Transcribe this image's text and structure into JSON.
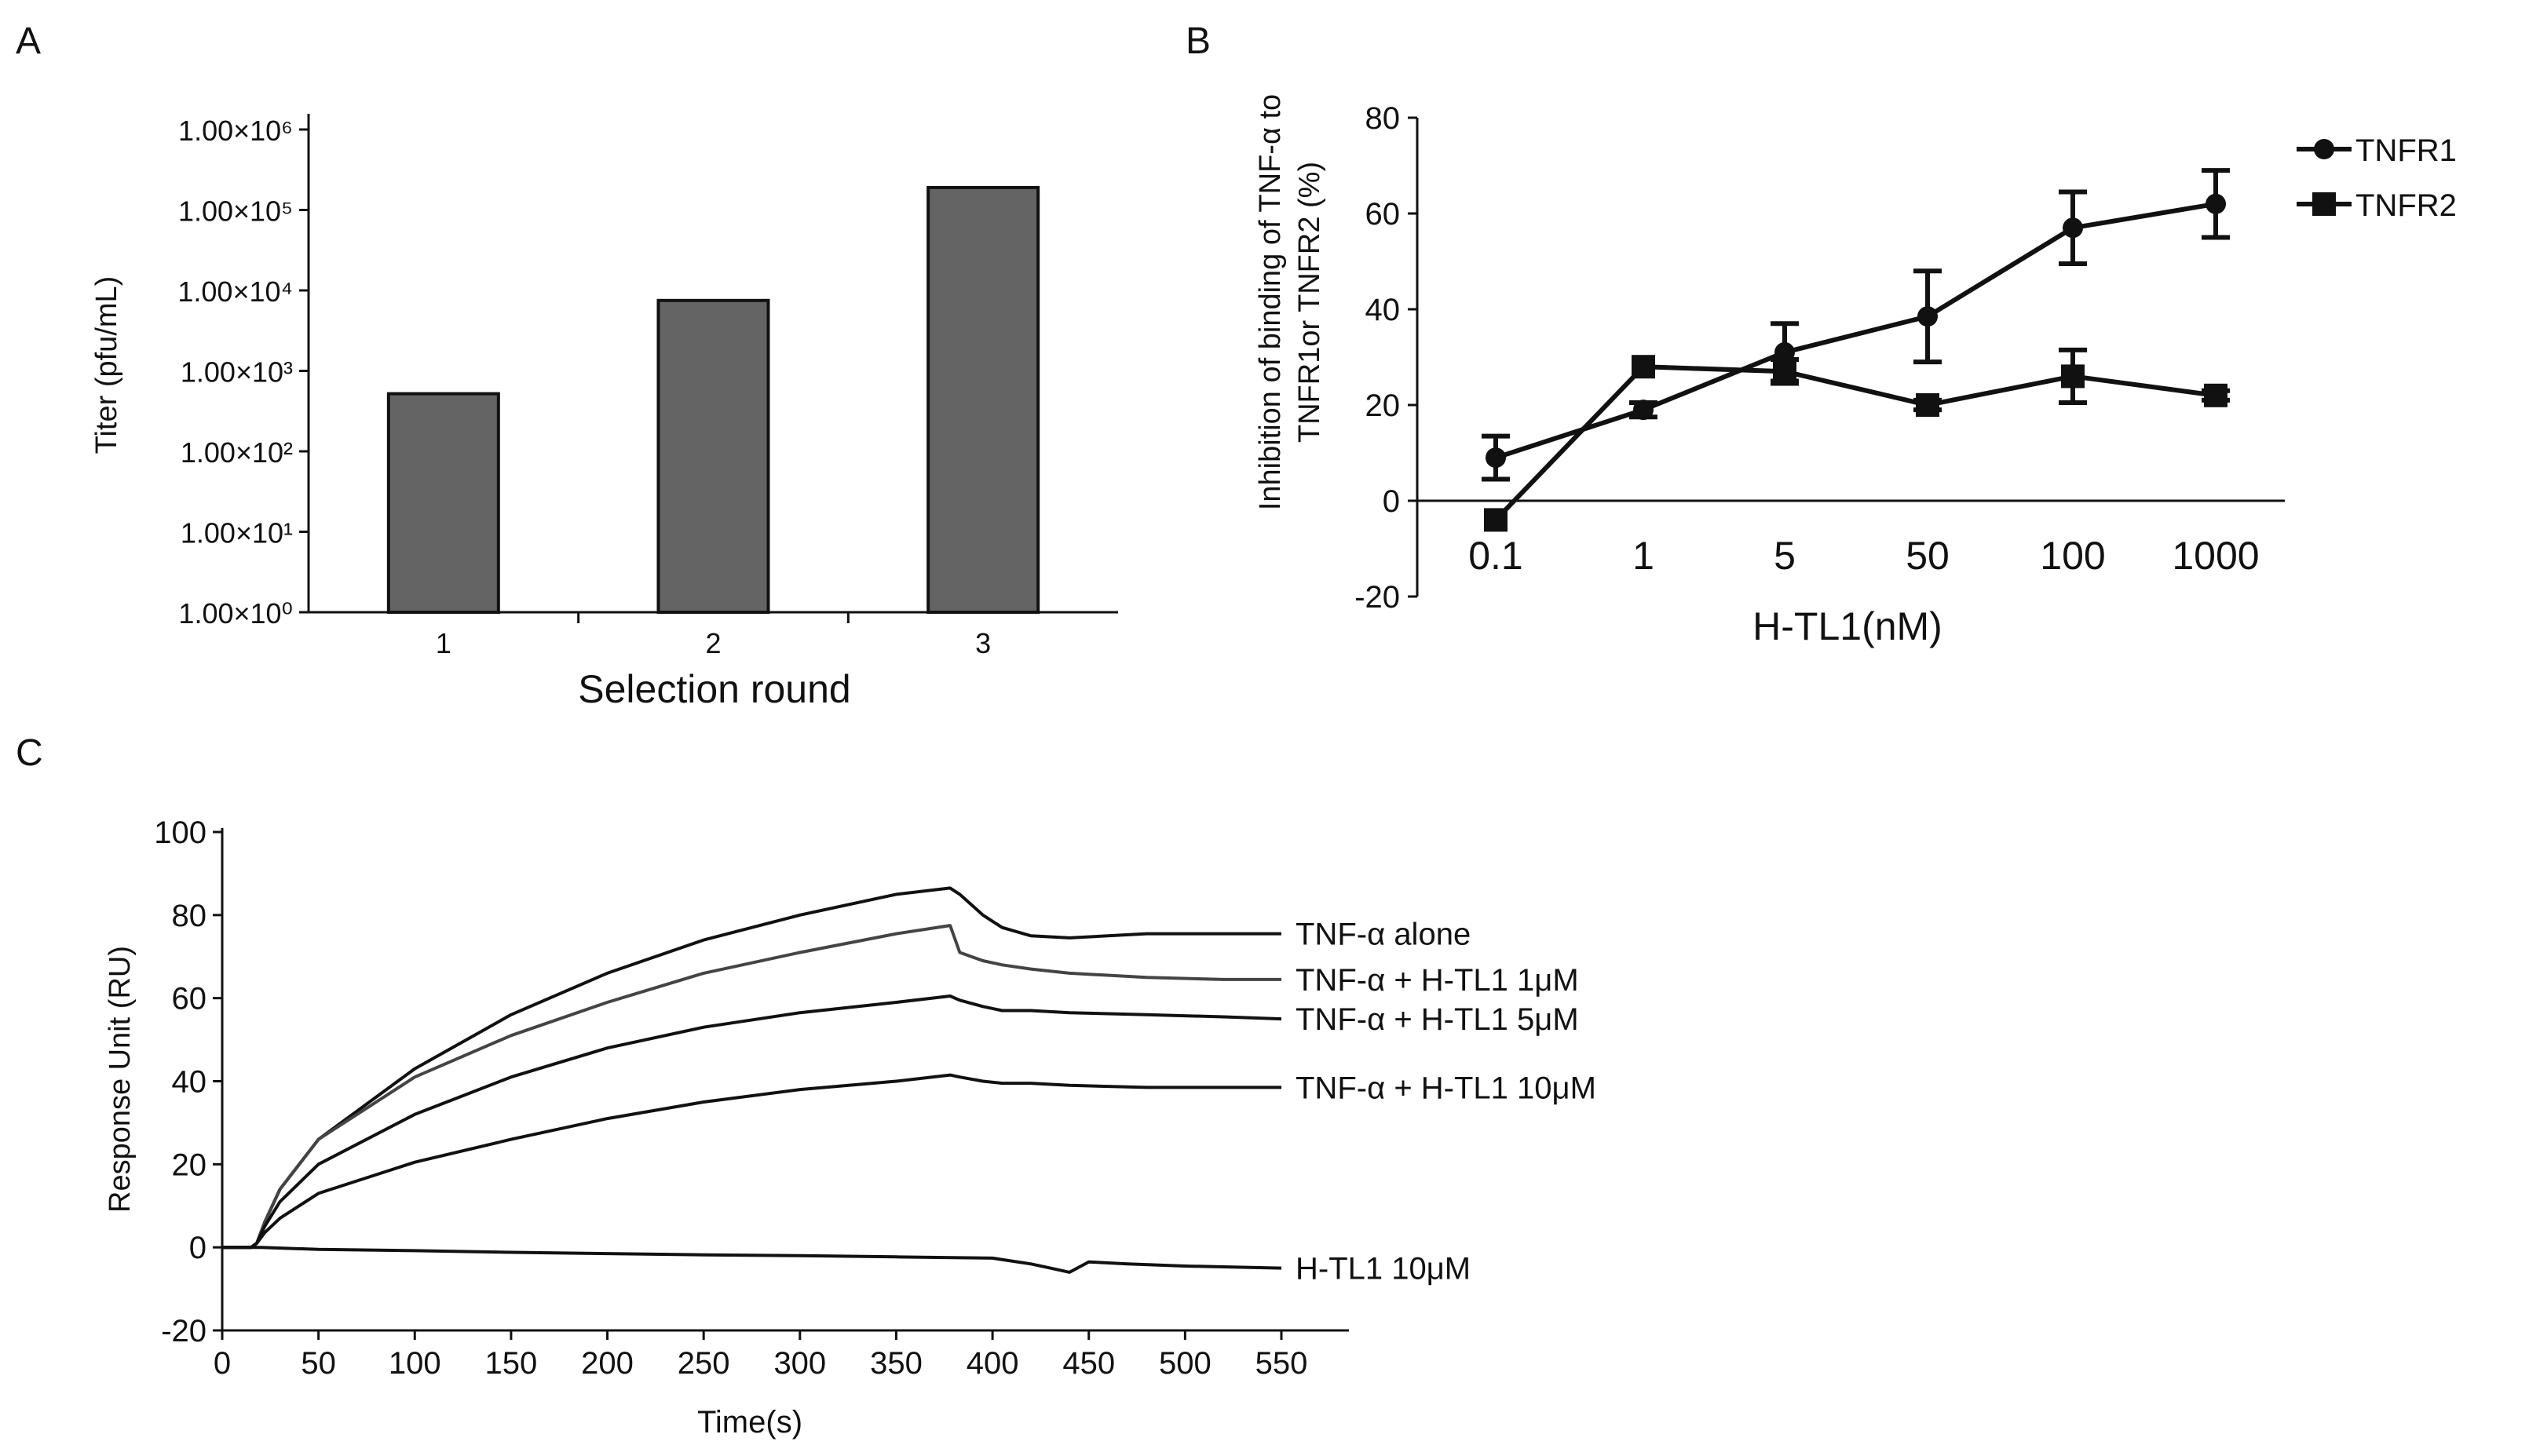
{
  "colors": {
    "bar": "#646464",
    "ink": "#111111",
    "gray_curve": "#444444"
  },
  "chart_data": [
    {
      "panel": "A",
      "type": "bar",
      "scale": "log10",
      "xlabel": "Selection round",
      "ylabel": "Titer (pfu/mL)",
      "categories": [
        "1",
        "2",
        "3"
      ],
      "values": [
        520,
        7500,
        190000
      ],
      "ylim": [
        1,
        1000000
      ],
      "ytick_labels": [
        "1.00×10⁰",
        "1.00×10¹",
        "1.00×10²",
        "1.00×10³",
        "1.00×10⁴",
        "1.00×10⁵",
        "1.00×10⁶"
      ],
      "grid": false
    },
    {
      "panel": "B",
      "type": "line",
      "xlabel": "H-TL1(nM)",
      "ylabel_line1": "Inhibition of binding of TNF-α to",
      "ylabel_line2": "TNFR1or TNFR2 (%)",
      "categories": [
        "0.1",
        "1",
        "5",
        "50",
        "100",
        "1000"
      ],
      "ylim": [
        -20,
        80
      ],
      "ytick_labels": [
        "-20",
        "0",
        "20",
        "40",
        "60",
        "80"
      ],
      "legend_position": "top-right",
      "grid": false,
      "series": [
        {
          "name": "TNFR1",
          "marker": "circle",
          "values": [
            9,
            19,
            31,
            38.5,
            57,
            62
          ],
          "errors": [
            4.5,
            1.5,
            6,
            9.5,
            7.5,
            7
          ]
        },
        {
          "name": "TNFR2",
          "marker": "square",
          "values": [
            -4,
            28,
            27,
            20,
            26,
            22
          ],
          "errors": [
            0,
            0,
            2.5,
            1,
            5.5,
            1
          ]
        }
      ]
    },
    {
      "panel": "C",
      "type": "line",
      "xlabel": "Time(s)",
      "ylabel": "Response Unit (RU)",
      "xlim": [
        0,
        550
      ],
      "ylim": [
        -20,
        100
      ],
      "xtick_labels": [
        "0",
        "50",
        "100",
        "150",
        "200",
        "250",
        "300",
        "350",
        "400",
        "450",
        "500",
        "550"
      ],
      "ytick_labels": [
        "-20",
        "0",
        "20",
        "40",
        "60",
        "80",
        "100"
      ],
      "grid": false,
      "series": [
        {
          "name": "TNF-α alone",
          "x": [
            0,
            15,
            18,
            22,
            30,
            50,
            100,
            150,
            200,
            250,
            300,
            350,
            378,
            383,
            395,
            405,
            420,
            440,
            480,
            520,
            550
          ],
          "y": [
            0,
            0,
            1,
            6,
            14,
            26,
            43,
            56,
            66,
            74,
            80,
            85,
            86.5,
            85,
            80,
            77,
            75,
            74.5,
            75.5,
            75.5,
            75.5
          ]
        },
        {
          "name": "TNF-α + H-TL1 1μM",
          "x": [
            0,
            15,
            18,
            22,
            30,
            50,
            100,
            150,
            200,
            250,
            300,
            350,
            378,
            383,
            395,
            405,
            420,
            440,
            480,
            520,
            550
          ],
          "y": [
            0,
            0,
            1,
            6,
            14,
            26,
            41,
            51,
            59,
            66,
            71,
            75.5,
            77.5,
            71,
            69,
            68,
            67,
            66,
            65,
            64.5,
            64.5
          ]
        },
        {
          "name": "TNF-α + H-TL1 5μM",
          "x": [
            0,
            15,
            18,
            22,
            30,
            50,
            100,
            150,
            200,
            250,
            300,
            350,
            378,
            383,
            395,
            405,
            420,
            440,
            480,
            520,
            550
          ],
          "y": [
            0,
            0,
            1,
            5,
            11,
            20,
            32,
            41,
            48,
            53,
            56.5,
            59,
            60.5,
            59.5,
            58,
            57,
            57,
            56.5,
            56,
            55.5,
            55
          ]
        },
        {
          "name": "TNF-α + H-TL1 10μM",
          "x": [
            0,
            15,
            18,
            22,
            30,
            50,
            100,
            150,
            200,
            250,
            300,
            350,
            378,
            383,
            395,
            405,
            420,
            440,
            480,
            520,
            550
          ],
          "y": [
            0,
            0,
            1,
            3.5,
            7,
            13,
            20.5,
            26,
            31,
            35,
            38,
            40,
            41.5,
            41,
            40,
            39.5,
            39.5,
            39,
            38.5,
            38.5,
            38.5
          ]
        },
        {
          "name": "H-TL1 10μM",
          "x": [
            0,
            20,
            50,
            100,
            150,
            200,
            250,
            300,
            350,
            400,
            420,
            430,
            440,
            450,
            470,
            500,
            550
          ],
          "y": [
            0,
            0,
            -0.5,
            -0.8,
            -1.2,
            -1.5,
            -1.8,
            -2,
            -2.3,
            -2.6,
            -4,
            -5,
            -6,
            -3.5,
            -4,
            -4.5,
            -5
          ]
        }
      ]
    }
  ]
}
